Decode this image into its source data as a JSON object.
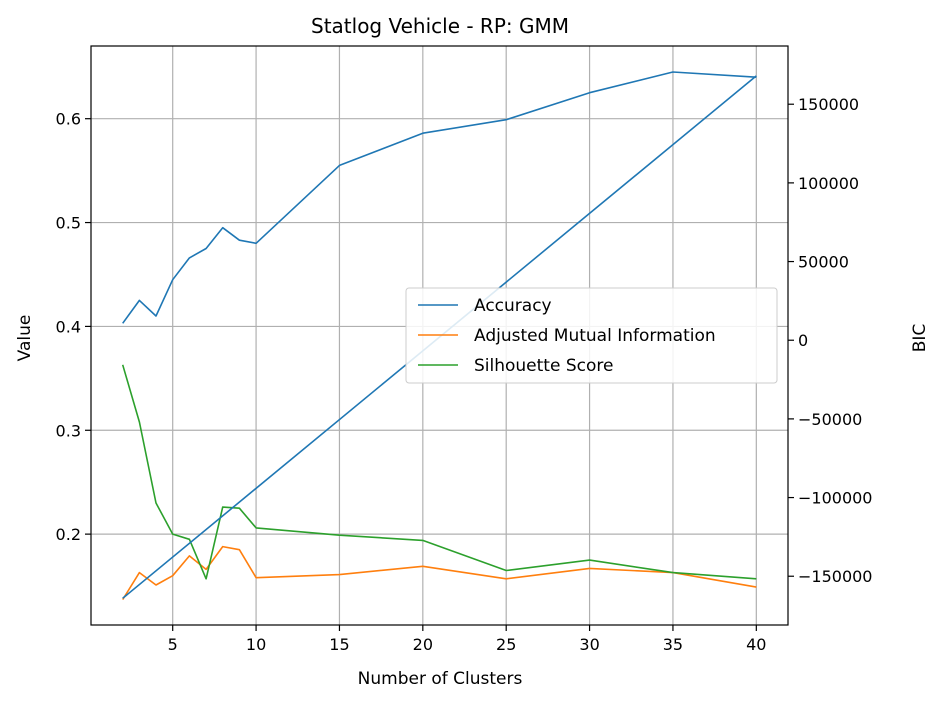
{
  "chart_data": {
    "type": "line",
    "title": "Statlog Vehicle - RP: GMM",
    "xlabel": "Number of Clusters",
    "ylabel": "Value",
    "y2label": "BIC",
    "xlim": [
      0.1,
      41.9
    ],
    "ylim": [
      0.1125,
      0.67
    ],
    "y2lim": [
      -181000,
      187000
    ],
    "xticks": [
      5,
      10,
      15,
      20,
      25,
      30,
      35,
      40
    ],
    "yticks": [
      0.2,
      0.3,
      0.4,
      0.5,
      0.6
    ],
    "y2ticks": [
      -150000,
      -100000,
      -50000,
      0,
      50000,
      100000,
      150000
    ],
    "y2tick_labels": [
      "−150000",
      "−100000",
      "−50000",
      "0",
      "50000",
      "100000",
      "150000"
    ],
    "grid": true,
    "legend_position": "center-right",
    "series": [
      {
        "name": "Accuracy",
        "color": "#1f77b4",
        "axis": "left",
        "x": [
          2,
          3,
          4,
          5,
          6,
          7,
          8,
          9,
          10,
          15,
          20,
          25,
          30,
          35,
          40
        ],
        "values": [
          0.403,
          0.425,
          0.41,
          0.445,
          0.466,
          0.475,
          0.495,
          0.483,
          0.48,
          0.555,
          0.586,
          0.599,
          0.625,
          0.645,
          0.64
        ]
      },
      {
        "name": "Adjusted Mutual Information",
        "color": "#ff7f0e",
        "axis": "left",
        "x": [
          2,
          3,
          4,
          5,
          6,
          7,
          8,
          9,
          10,
          15,
          20,
          25,
          30,
          35,
          40
        ],
        "values": [
          0.137,
          0.163,
          0.151,
          0.16,
          0.179,
          0.166,
          0.188,
          0.185,
          0.158,
          0.161,
          0.169,
          0.157,
          0.167,
          0.163,
          0.149
        ]
      },
      {
        "name": "Silhouette Score",
        "color": "#2ca02c",
        "axis": "left",
        "x": [
          2,
          3,
          4,
          5,
          6,
          7,
          8,
          9,
          10,
          15,
          20,
          25,
          30,
          35,
          40
        ],
        "values": [
          0.363,
          0.308,
          0.23,
          0.2,
          0.195,
          0.157,
          0.226,
          0.225,
          0.206,
          0.199,
          0.194,
          0.165,
          0.175,
          0.163,
          0.157
        ]
      },
      {
        "color": "#1f77b4",
        "axis": "right",
        "x": [
          2,
          40
        ],
        "values": [
          -164000,
          168000
        ]
      }
    ]
  }
}
